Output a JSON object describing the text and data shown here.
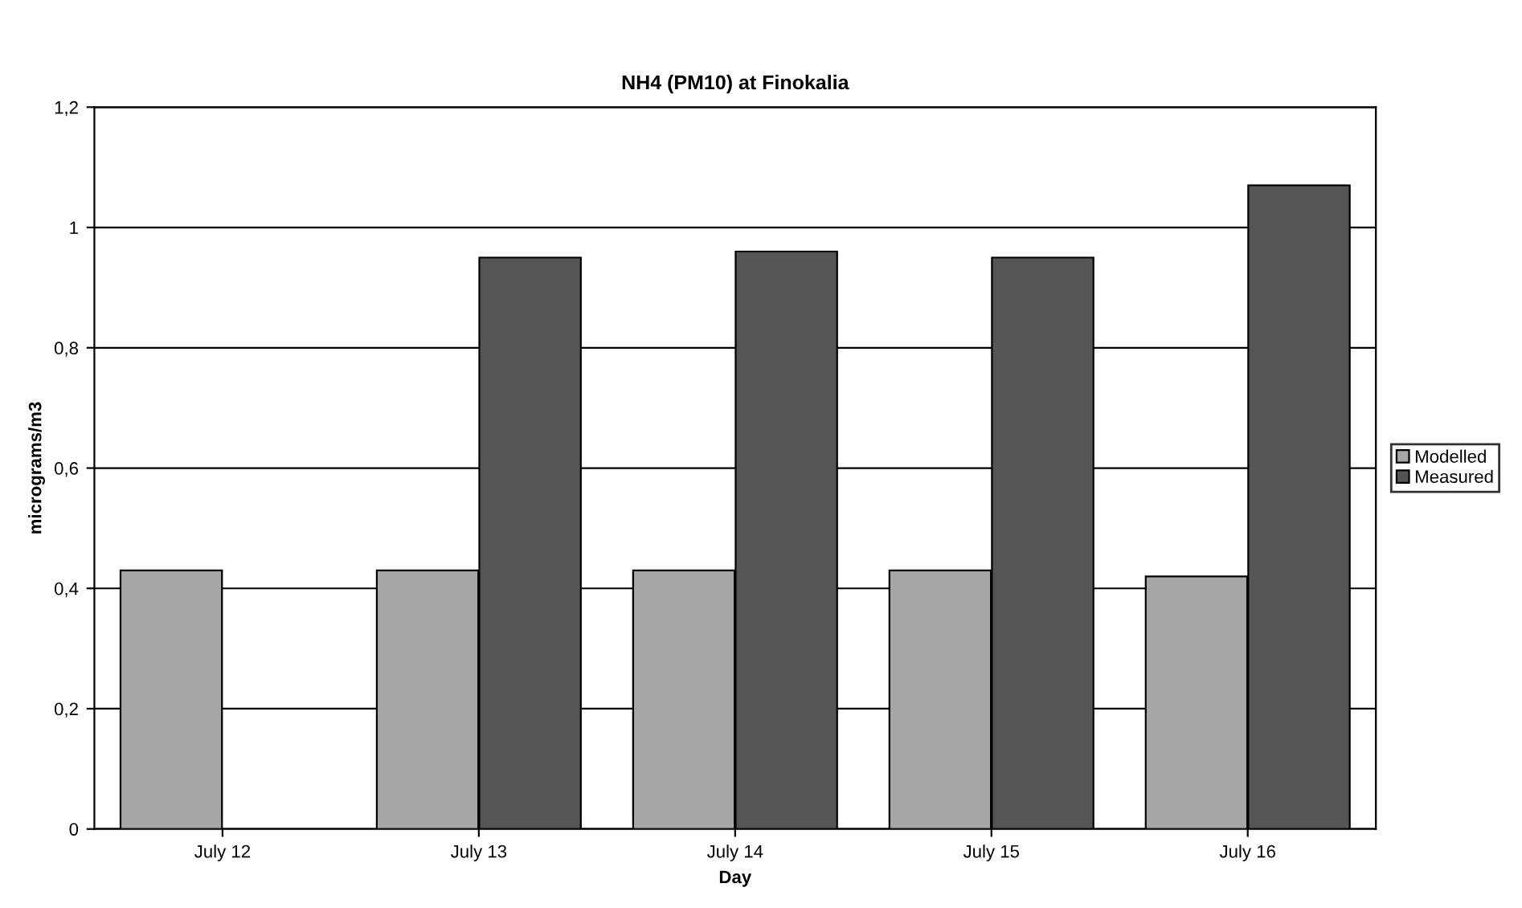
{
  "chart_data": {
    "type": "bar",
    "title": "NH4 (PM10) at Finokalia",
    "xlabel": "Day",
    "ylabel": "micrograms/m3",
    "categories": [
      "July 12",
      "July 13",
      "July 14",
      "July 15",
      "July 16"
    ],
    "series": [
      {
        "name": "Modelled",
        "color": "#a6a6a6",
        "values": [
          0.43,
          0.43,
          0.43,
          0.43,
          0.42
        ]
      },
      {
        "name": "Measured",
        "color": "#555555",
        "values": [
          null,
          0.95,
          0.96,
          0.95,
          1.07
        ]
      }
    ],
    "ylim": [
      0,
      1.2
    ],
    "yticks": [
      0,
      {
        "value": 0.2,
        "label": "0,2"
      },
      {
        "value": 0.4,
        "label": "0,4"
      },
      {
        "value": 0.6,
        "label": "0,6"
      },
      {
        "value": 0.8,
        "label": "0,8"
      },
      1,
      {
        "value": 1.2,
        "label": "1,2"
      }
    ],
    "grid": "y",
    "legend": "right"
  }
}
